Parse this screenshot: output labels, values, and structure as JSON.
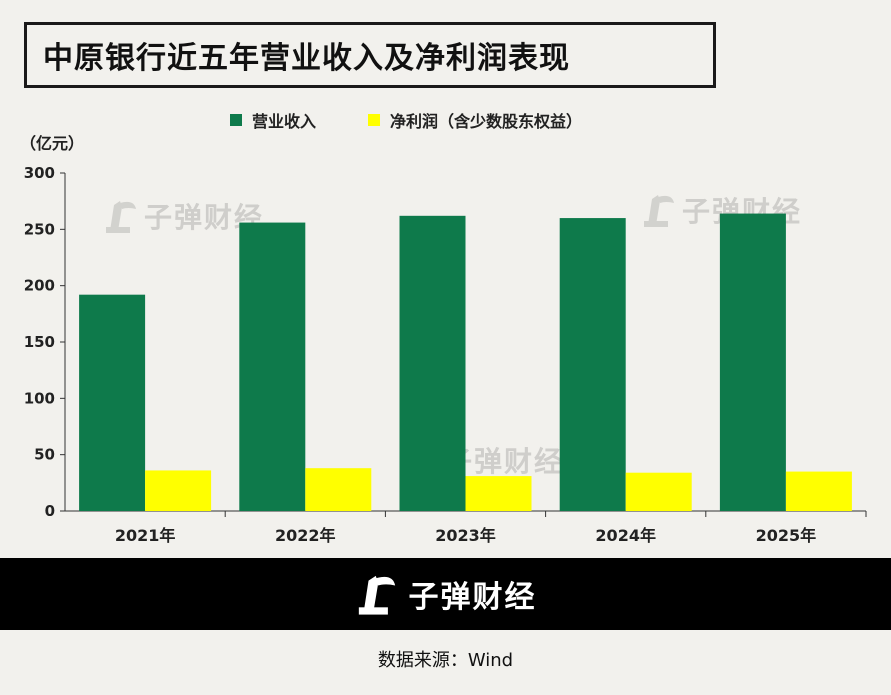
{
  "title": "中原银行近五年营业收入及净利润表现",
  "unit_label": "（亿元）",
  "source_text": "数据来源：Wind",
  "brand": "子弹财经",
  "colors": {
    "revenue": "#0e7a4b",
    "profit": "#ffff00",
    "axis": "#333333"
  },
  "chart_data": {
    "type": "bar",
    "categories": [
      "2021年",
      "2022年",
      "2023年",
      "2024年",
      "2025年"
    ],
    "series": [
      {
        "name": "营业收入",
        "values": [
          192,
          256,
          262,
          260,
          264
        ]
      },
      {
        "name": "净利润（含少数股东权益）",
        "values": [
          36,
          38,
          31,
          34,
          35
        ]
      }
    ],
    "ylim": [
      0,
      300
    ],
    "yticks": [
      0,
      50,
      100,
      150,
      200,
      250,
      300
    ],
    "ylabel": "（亿元）",
    "legend_position": "top"
  }
}
